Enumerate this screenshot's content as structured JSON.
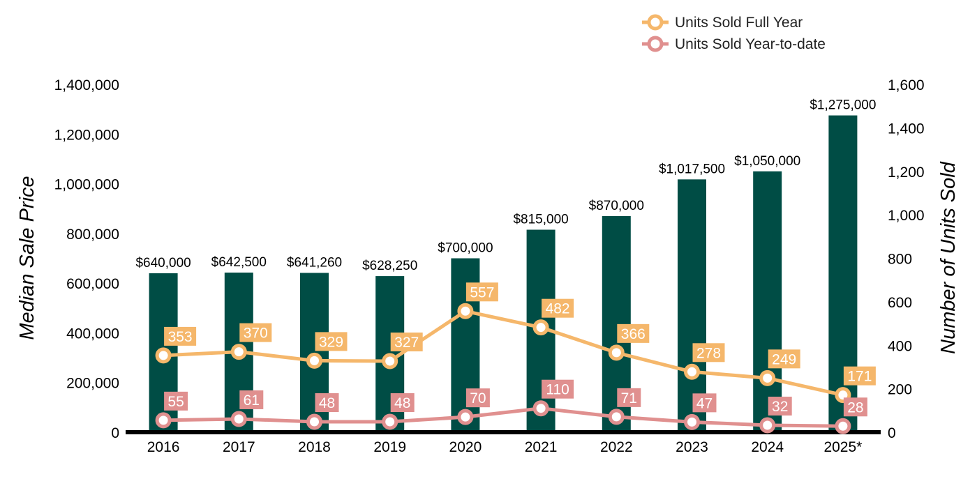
{
  "chart_data": {
    "type": "bar",
    "categories": [
      "2016",
      "2017",
      "2018",
      "2019",
      "2020",
      "2021",
      "2022",
      "2023",
      "2024",
      "2025*"
    ],
    "bar_series": {
      "values": [
        640000,
        642500,
        641260,
        628250,
        700000,
        815000,
        870000,
        1017500,
        1050000,
        1275000
      ],
      "labels": [
        "$640,000",
        "$642,500",
        "$641,260",
        "$628,250",
        "$700,000",
        "$815,000",
        "$870,000",
        "$1,017,500",
        "$1,050,000",
        "$1,275,000"
      ],
      "color": "#004d45"
    },
    "line_series": [
      {
        "name": "Units Sold Full Year",
        "values": [
          353,
          370,
          329,
          327,
          557,
          482,
          366,
          278,
          249,
          171
        ],
        "labels": [
          "353",
          "370",
          "329",
          "327",
          "557",
          "482",
          "366",
          "278",
          "249",
          "171"
        ],
        "color": "#f5b76b"
      },
      {
        "name": "Units Sold Year-to-date",
        "values": [
          55,
          61,
          48,
          48,
          70,
          110,
          71,
          47,
          32,
          28
        ],
        "labels": [
          "55",
          "61",
          "48",
          "48",
          "70",
          "110",
          "71",
          "47",
          "32",
          "28"
        ],
        "color": "#e0908f"
      }
    ],
    "ylabel": "Median Sale Price",
    "y2label": "Number of Units Sold",
    "ylim": [
      0,
      1400000
    ],
    "y2lim": [
      0,
      1600
    ],
    "yticks": [
      "0",
      "200,000",
      "400,000",
      "600,000",
      "800,000",
      "1,000,000",
      "1,200,000",
      "1,400,000"
    ],
    "y2ticks": [
      "0",
      "200",
      "400",
      "600",
      "800",
      "1,000",
      "1,200",
      "1,400",
      "1,600"
    ],
    "grid": false,
    "legend_position": "top-right"
  }
}
